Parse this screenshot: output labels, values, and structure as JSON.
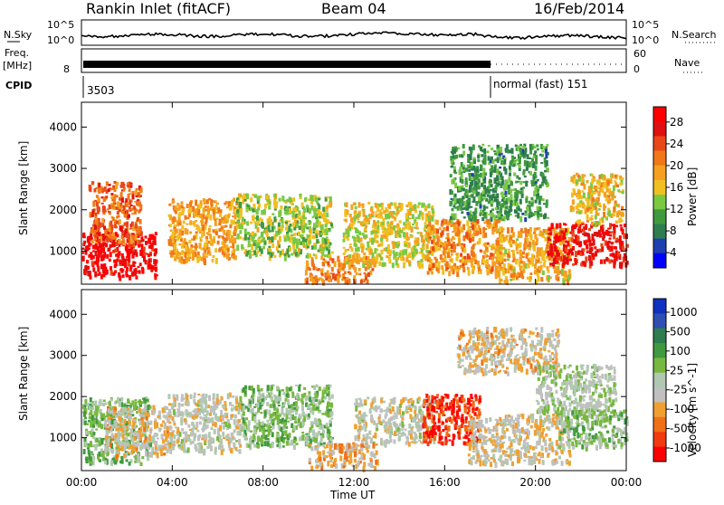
{
  "header": {
    "station": "Rankin Inlet (fitACF)",
    "beam": "Beam 04",
    "date": "16/Feb/2014"
  },
  "noise_panel": {
    "left_label": "N.Sky",
    "right_label": "N.Search",
    "tick_top": "10^5",
    "tick_bottom": "10^0",
    "right_tick_top": "10^5",
    "right_tick_bottom": "10^0"
  },
  "freq_panel": {
    "left_label_1": "Freq.",
    "left_label_2": "[MHz]",
    "left_tick": "8",
    "right_label": "Nave",
    "right_tick_top": "60",
    "right_tick_bottom": "0"
  },
  "cpid_panel": {
    "left_label": "CPID",
    "program_1": "3503",
    "program_2": "normal (fast) 151"
  },
  "colors": {
    "power_scale": [
      "#0000ff",
      "#1f3fb0",
      "#2e7d4f",
      "#3f9a3f",
      "#7ac943",
      "#f0c020",
      "#f5a020",
      "#f07818",
      "#e84818",
      "#e01010",
      "#ff0000"
    ],
    "velocity_scale": [
      "#ff0000",
      "#f03a10",
      "#f07018",
      "#f0a030",
      "#c0c0c0",
      "#b0c8b0",
      "#78b840",
      "#3f9a3f",
      "#2e7d4f",
      "#2f4fb0",
      "#1030c0"
    ]
  },
  "chart_data": [
    {
      "type": "heatmap",
      "title": "",
      "xlabel": "Time UT",
      "ylabel": "Slant Range [km]",
      "x_ticks": [
        "00:00",
        "04:00",
        "08:00",
        "12:00",
        "16:00",
        "20:00",
        "00:00"
      ],
      "y_ticks": [
        "1000",
        "2000",
        "3000",
        "4000"
      ],
      "ylim": [
        200,
        4600
      ],
      "colorbar": {
        "label": "Power [dB]",
        "ticks": [
          "4",
          "8",
          "12",
          "16",
          "20",
          "24",
          "28"
        ],
        "range": [
          0,
          30
        ]
      },
      "regions": [
        {
          "t": [
            0.0,
            3.3
          ],
          "r": [
            400,
            1500
          ],
          "v": 28
        },
        {
          "t": [
            0.3,
            2.6
          ],
          "r": [
            1200,
            2700
          ],
          "v": 22
        },
        {
          "t": [
            3.8,
            6.8
          ],
          "r": [
            800,
            2300
          ],
          "v": 18
        },
        {
          "t": [
            6.8,
            11.0
          ],
          "r": [
            900,
            2400
          ],
          "v": 13
        },
        {
          "t": [
            9.8,
            12.8
          ],
          "r": [
            300,
            900
          ],
          "v": 20
        },
        {
          "t": [
            11.5,
            15.5
          ],
          "r": [
            700,
            2200
          ],
          "v": 15
        },
        {
          "t": [
            15.2,
            18.5
          ],
          "r": [
            500,
            1800
          ],
          "v": 19
        },
        {
          "t": [
            16.2,
            20.5
          ],
          "r": [
            1800,
            3600
          ],
          "v": 9
        },
        {
          "t": [
            18.2,
            21.5
          ],
          "r": [
            300,
            1600
          ],
          "v": 17
        },
        {
          "t": [
            20.5,
            24.0
          ],
          "r": [
            700,
            1700
          ],
          "v": 27
        },
        {
          "t": [
            21.5,
            23.8
          ],
          "r": [
            1700,
            2900
          ],
          "v": 16
        }
      ]
    },
    {
      "type": "heatmap",
      "title": "",
      "xlabel": "Time UT",
      "ylabel": "Slant Range [km]",
      "x_ticks": [
        "00:00",
        "04:00",
        "08:00",
        "12:00",
        "16:00",
        "20:00",
        "00:00"
      ],
      "y_ticks": [
        "1000",
        "2000",
        "3000",
        "4000"
      ],
      "ylim": [
        200,
        4600
      ],
      "colorbar": {
        "label": "Velocity [m s^-1]",
        "ticks": [
          "1000",
          "500",
          "100",
          "25",
          "-25",
          "-100",
          "-500",
          "-1000"
        ],
        "range": [
          -1200,
          1200
        ]
      },
      "regions": [
        {
          "t": [
            0.0,
            3.0
          ],
          "r": [
            400,
            2000
          ],
          "v": 250
        },
        {
          "t": [
            1.0,
            3.8
          ],
          "r": [
            600,
            1800
          ],
          "v": -300
        },
        {
          "t": [
            3.8,
            7.0
          ],
          "r": [
            700,
            2100
          ],
          "v": -150
        },
        {
          "t": [
            7.0,
            11.0
          ],
          "r": [
            800,
            2300
          ],
          "v": 200
        },
        {
          "t": [
            10.0,
            13.0
          ],
          "r": [
            300,
            900
          ],
          "v": -400
        },
        {
          "t": [
            12.0,
            15.5
          ],
          "r": [
            900,
            2000
          ],
          "v": -150
        },
        {
          "t": [
            15.0,
            17.5
          ],
          "r": [
            900,
            2100
          ],
          "v": -900
        },
        {
          "t": [
            16.5,
            21.0
          ],
          "r": [
            2600,
            3700
          ],
          "v": -300
        },
        {
          "t": [
            17.0,
            21.5
          ],
          "r": [
            400,
            1600
          ],
          "v": -250
        },
        {
          "t": [
            20.0,
            23.5
          ],
          "r": [
            1600,
            2800
          ],
          "v": 0
        },
        {
          "t": [
            21.0,
            24.0
          ],
          "r": [
            800,
            1700
          ],
          "v": 150
        }
      ]
    }
  ]
}
